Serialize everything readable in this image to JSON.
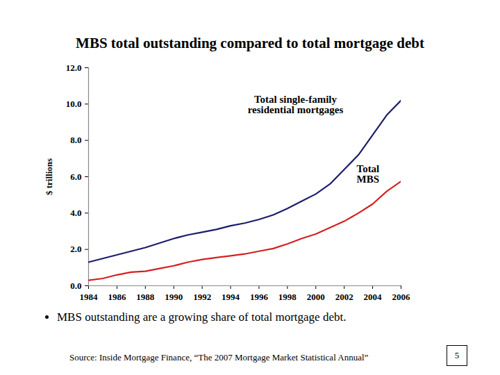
{
  "chart_data": {
    "type": "line",
    "title": "MBS total outstanding compared to total mortgage debt",
    "y_label": "$ trillions",
    "x": [
      1984,
      1985,
      1986,
      1987,
      1988,
      1989,
      1990,
      1991,
      1992,
      1993,
      1994,
      1995,
      1996,
      1997,
      1998,
      1999,
      2000,
      2001,
      2002,
      2003,
      2004,
      2005,
      2006
    ],
    "series": [
      {
        "name": "Total single-family residential mortgages",
        "color": "#1c1c6b",
        "values": [
          1.3,
          1.5,
          1.7,
          1.9,
          2.1,
          2.35,
          2.6,
          2.8,
          2.95,
          3.1,
          3.3,
          3.45,
          3.65,
          3.9,
          4.25,
          4.65,
          5.05,
          5.6,
          6.4,
          7.2,
          8.3,
          9.4,
          10.2
        ]
      },
      {
        "name": "Total MBS",
        "color": "#d42020",
        "values": [
          0.3,
          0.4,
          0.6,
          0.75,
          0.8,
          0.95,
          1.1,
          1.3,
          1.45,
          1.55,
          1.65,
          1.75,
          1.9,
          2.05,
          2.3,
          2.6,
          2.85,
          3.2,
          3.55,
          4.0,
          4.5,
          5.2,
          5.75
        ]
      }
    ],
    "xlim": [
      1984,
      2006
    ],
    "xticks": [
      1984,
      1986,
      1988,
      1990,
      1992,
      1994,
      1996,
      1998,
      2000,
      2002,
      2004,
      2006
    ],
    "ylim": [
      0,
      12
    ],
    "yticks": [
      {
        "value": 0,
        "label": "0.0"
      },
      {
        "value": 2,
        "label": "2.0"
      },
      {
        "value": 4,
        "label": "4.0"
      },
      {
        "value": 6,
        "label": "6.0"
      },
      {
        "value": 8,
        "label": "8.0"
      },
      {
        "value": 10,
        "label": "10.0"
      },
      {
        "value": 12,
        "label": "12.0"
      }
    ],
    "grid": false,
    "note": "MBS outstanding are a growing share of total mortgage debt.",
    "source": "Source: Inside Mortgage Finance, “The 2007 Mortgage Market Statistical Annual”",
    "page_number": 5
  }
}
